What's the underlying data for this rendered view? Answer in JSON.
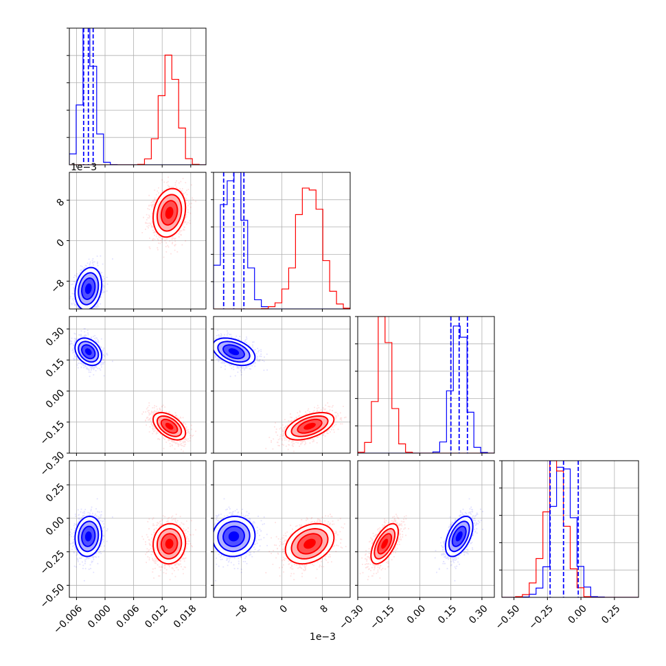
{
  "chart_data": {
    "type": "corner",
    "title": "",
    "grid": true,
    "series": [
      {
        "name": "",
        "color": "#0000ff"
      },
      {
        "name": "",
        "color": "#ff0000"
      }
    ],
    "params": [
      {
        "id": "p0",
        "range": [
          -0.0075,
          0.0212
        ],
        "ticks": [
          -0.006,
          0.0,
          0.006,
          0.012,
          0.018
        ],
        "tick_labels": [
          "−0.006",
          "0.000",
          "0.006",
          "0.012",
          "0.018"
        ],
        "offset_label": ""
      },
      {
        "id": "p1",
        "range": [
          -0.0135,
          0.0135
        ],
        "ticks": [
          -0.008,
          0.0,
          0.008
        ],
        "tick_labels": [
          "−8",
          "0",
          "8"
        ],
        "offset_label": "1e−3"
      },
      {
        "id": "p2",
        "range": [
          -0.3,
          0.36
        ],
        "ticks": [
          -0.3,
          -0.15,
          0.0,
          0.15,
          0.3
        ],
        "tick_labels": [
          "−0.30",
          "−0.15",
          "0.00",
          "0.15",
          "0.30"
        ],
        "offset_label": ""
      },
      {
        "id": "p3",
        "range": [
          -0.59,
          0.43
        ],
        "ticks": [
          -0.5,
          -0.25,
          0.0,
          0.25
        ],
        "tick_labels": [
          "−0.50",
          "−0.25",
          "0.00",
          "0.25"
        ],
        "offset_label": ""
      }
    ],
    "posteriors": [
      {
        "series": 0,
        "mean": [
          -0.0035,
          -0.0095,
          0.19,
          -0.135
        ],
        "sd": [
          0.0014,
          0.0021,
          0.033,
          0.075
        ],
        "corr": [
          [
            1,
            0.2,
            -0.3,
            0.1
          ],
          [
            0.2,
            1,
            -0.4,
            0.05
          ],
          [
            -0.3,
            -0.4,
            1,
            0.5
          ],
          [
            0.1,
            0.05,
            0.5,
            1
          ]
        ]
      },
      {
        "series": 1,
        "mean": [
          0.0135,
          0.0055,
          -0.17,
          -0.19
        ],
        "sd": [
          0.0017,
          0.0024,
          0.033,
          0.075
        ],
        "corr": [
          [
            1,
            0.2,
            -0.5,
            0.05
          ],
          [
            0.2,
            1,
            0.5,
            0.3
          ],
          [
            -0.5,
            0.5,
            1,
            0.6
          ],
          [
            0.05,
            0.3,
            0.6,
            1
          ]
        ]
      }
    ],
    "quantile_lines": {
      "series": 0,
      "p0": [
        -0.0045,
        -0.0035,
        -0.0025
      ],
      "p1": [
        -0.0115,
        -0.0095,
        -0.0075
      ],
      "p2": [
        0.15,
        0.19,
        0.23
      ],
      "p3": [
        -0.23,
        -0.13,
        -0.02
      ]
    }
  }
}
